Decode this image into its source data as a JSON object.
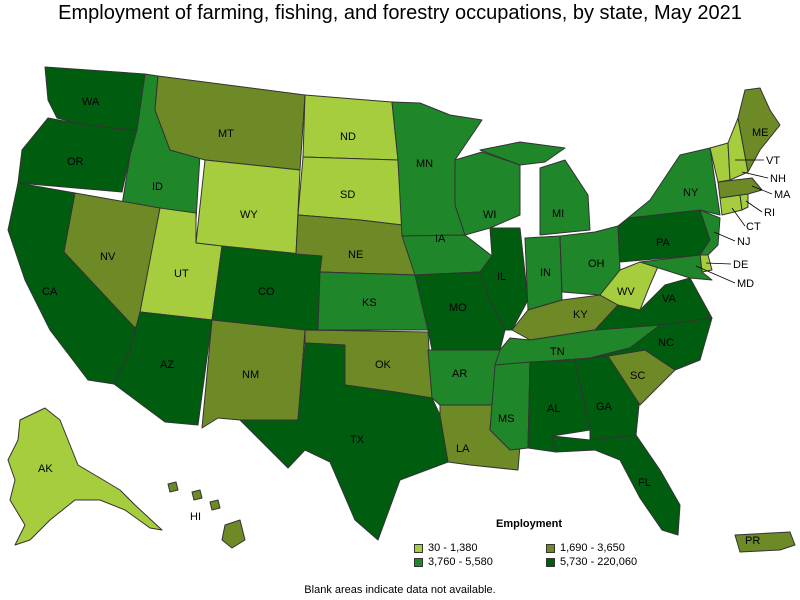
{
  "title": "Employment of farming, fishing, and forestry occupations, by state, May 2021",
  "legend": {
    "title": "Employment",
    "items": [
      {
        "label": "30 - 1,380",
        "color": "#a6cd3e"
      },
      {
        "label": "1,690 - 3,650",
        "color": "#6d8a26"
      },
      {
        "label": "3,760 - 5,580",
        "color": "#20862a"
      },
      {
        "label": "5,730 - 220,060",
        "color": "#005d0f"
      }
    ]
  },
  "footnote": "Blank areas indicate data not available.",
  "states": [
    {
      "abbr": "WA",
      "tier": 3
    },
    {
      "abbr": "OR",
      "tier": 3
    },
    {
      "abbr": "CA",
      "tier": 3
    },
    {
      "abbr": "ID",
      "tier": 2
    },
    {
      "abbr": "NV",
      "tier": 1
    },
    {
      "abbr": "MT",
      "tier": 1
    },
    {
      "abbr": "WY",
      "tier": 0
    },
    {
      "abbr": "UT",
      "tier": 0
    },
    {
      "abbr": "AZ",
      "tier": 3
    },
    {
      "abbr": "CO",
      "tier": 3
    },
    {
      "abbr": "NM",
      "tier": 1
    },
    {
      "abbr": "ND",
      "tier": 0
    },
    {
      "abbr": "SD",
      "tier": 0
    },
    {
      "abbr": "NE",
      "tier": 1
    },
    {
      "abbr": "KS",
      "tier": 2
    },
    {
      "abbr": "OK",
      "tier": 1
    },
    {
      "abbr": "TX",
      "tier": 3
    },
    {
      "abbr": "MN",
      "tier": 2
    },
    {
      "abbr": "IA",
      "tier": 2
    },
    {
      "abbr": "MO",
      "tier": 3
    },
    {
      "abbr": "AR",
      "tier": 2
    },
    {
      "abbr": "LA",
      "tier": 1
    },
    {
      "abbr": "WI",
      "tier": 2
    },
    {
      "abbr": "IL",
      "tier": 3
    },
    {
      "abbr": "MI",
      "tier": 2
    },
    {
      "abbr": "IN",
      "tier": 2
    },
    {
      "abbr": "OH",
      "tier": 2
    },
    {
      "abbr": "KY",
      "tier": 1
    },
    {
      "abbr": "TN",
      "tier": 2
    },
    {
      "abbr": "MS",
      "tier": 2
    },
    {
      "abbr": "AL",
      "tier": 3
    },
    {
      "abbr": "GA",
      "tier": 3
    },
    {
      "abbr": "FL",
      "tier": 3
    },
    {
      "abbr": "SC",
      "tier": 1
    },
    {
      "abbr": "NC",
      "tier": 3
    },
    {
      "abbr": "VA",
      "tier": 3
    },
    {
      "abbr": "WV",
      "tier": 0
    },
    {
      "abbr": "PA",
      "tier": 3
    },
    {
      "abbr": "NY",
      "tier": 2
    },
    {
      "abbr": "ME",
      "tier": 1
    },
    {
      "abbr": "VT",
      "tier": 0
    },
    {
      "abbr": "NH",
      "tier": 0
    },
    {
      "abbr": "MA",
      "tier": 1
    },
    {
      "abbr": "RI",
      "tier": 0
    },
    {
      "abbr": "CT",
      "tier": 0
    },
    {
      "abbr": "NJ",
      "tier": 2
    },
    {
      "abbr": "DE",
      "tier": 0
    },
    {
      "abbr": "MD",
      "tier": 2
    },
    {
      "abbr": "AK",
      "tier": 0
    },
    {
      "abbr": "HI",
      "tier": 1
    },
    {
      "abbr": "PR",
      "tier": 1
    }
  ]
}
